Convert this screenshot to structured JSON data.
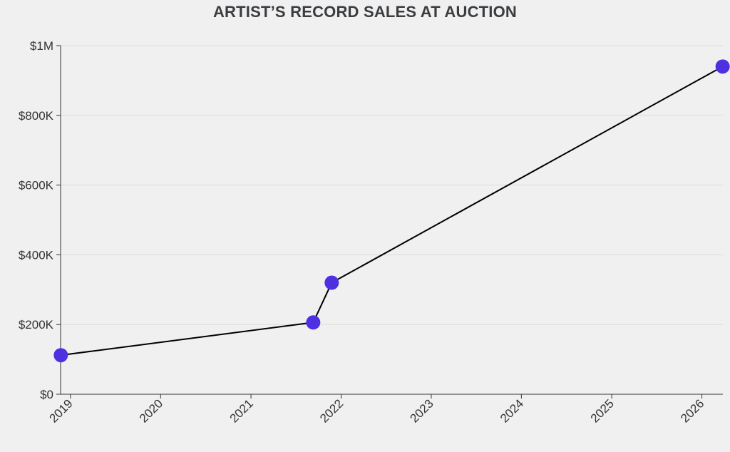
{
  "chart_data": {
    "type": "line",
    "title": "ARTIST’S RECORD SALES AT AUCTION",
    "xlabel": "",
    "ylabel": "",
    "x_axis_kind": "date",
    "xlim": [
      "2018-11-22",
      "2026-03-27"
    ],
    "ylim": [
      0,
      1000000
    ],
    "x_ticks": [
      {
        "date": "2019-01-01",
        "label": "2019"
      },
      {
        "date": "2020-01-01",
        "label": "2020"
      },
      {
        "date": "2021-01-01",
        "label": "2021"
      },
      {
        "date": "2022-01-01",
        "label": "2022"
      },
      {
        "date": "2023-01-01",
        "label": "2023"
      },
      {
        "date": "2024-01-01",
        "label": "2024"
      },
      {
        "date": "2025-01-01",
        "label": "2025"
      },
      {
        "date": "2026-01-01",
        "label": "2026"
      }
    ],
    "y_ticks": [
      {
        "value": 0,
        "label": "$0"
      },
      {
        "value": 200000,
        "label": "$200K"
      },
      {
        "value": 400000,
        "label": "$400K"
      },
      {
        "value": 600000,
        "label": "$600K"
      },
      {
        "value": 800000,
        "label": "$800K"
      },
      {
        "value": 1000000,
        "label": "$1M"
      }
    ],
    "grid": true,
    "legend": "none",
    "series": [
      {
        "points": [
          {
            "x": "2018-11-23",
            "y": 112000
          },
          {
            "x": "2021-09-10",
            "y": 206000
          },
          {
            "x": "2021-11-24",
            "y": 320000
          },
          {
            "x": "2026-03-26",
            "y": 940000
          }
        ]
      }
    ],
    "colors": {
      "marker": "#4f30e0",
      "line": "#000000",
      "grid": "#dcdcdc",
      "axis": "#333333",
      "title": "#3a3d40",
      "background": "#f0f0f0"
    }
  }
}
